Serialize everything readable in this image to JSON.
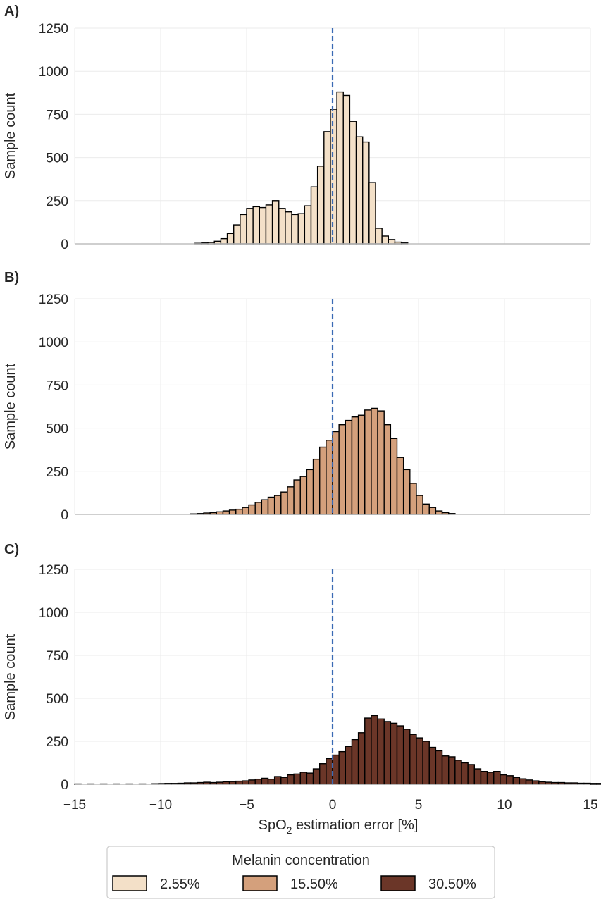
{
  "chart_data": {
    "type": "bar",
    "subtype": "histogram",
    "x_range": [
      -15,
      15
    ],
    "x_ticks": [
      -15,
      -10,
      -5,
      0,
      5,
      10,
      15
    ],
    "x_tick_labels": [
      "−15",
      "−10",
      "−5",
      "0",
      "5",
      "10",
      "15"
    ],
    "xlabel_main": "SpO",
    "xlabel_sub": "2",
    "xlabel_rest": " estimation error [%]",
    "ylabel": "Sample count",
    "y_range": [
      0,
      1250
    ],
    "y_ticks": [
      0,
      250,
      500,
      750,
      1000,
      1250
    ],
    "grid": true,
    "reference_line": {
      "x": 0,
      "color": "#3a6ab4",
      "style": "dashed"
    },
    "bin_width": 0.375,
    "legend": {
      "title": "Melanin concentration",
      "placement": "bottom-center",
      "items": [
        {
          "label": "2.55%",
          "color": "#f3e0c8"
        },
        {
          "label": "15.50%",
          "color": "#d4a07c"
        },
        {
          "label": "30.50%",
          "color": "#6b3628"
        }
      ]
    },
    "panels": [
      {
        "label": "A)",
        "series_name": "2.55%",
        "color": "#f3e0c8",
        "bin_start": -8.0,
        "counts": [
          3,
          5,
          8,
          15,
          30,
          60,
          110,
          170,
          205,
          215,
          210,
          225,
          250,
          205,
          185,
          170,
          175,
          220,
          330,
          450,
          650,
          780,
          880,
          860,
          710,
          620,
          590,
          355,
          90,
          45,
          25,
          10,
          5
        ]
      },
      {
        "label": "B)",
        "series_name": "15.50%",
        "color": "#d4a07c",
        "bin_start": -8.25,
        "counts": [
          3,
          5,
          8,
          10,
          15,
          20,
          25,
          30,
          40,
          55,
          70,
          85,
          100,
          110,
          130,
          160,
          200,
          220,
          260,
          320,
          390,
          430,
          480,
          520,
          545,
          565,
          575,
          605,
          615,
          600,
          520,
          440,
          330,
          260,
          180,
          110,
          60,
          40,
          20,
          10,
          5
        ]
      },
      {
        "label": "C)",
        "series_name": "30.50%",
        "color": "#6b3628",
        "bin_start": -15.0,
        "counts": [
          2,
          0,
          2,
          0,
          2,
          0,
          2,
          0,
          2,
          0,
          2,
          0,
          3,
          4,
          5,
          5,
          6,
          8,
          8,
          10,
          12,
          10,
          12,
          15,
          16,
          18,
          20,
          25,
          30,
          35,
          30,
          45,
          40,
          55,
          60,
          70,
          65,
          90,
          120,
          150,
          170,
          190,
          220,
          260,
          300,
          385,
          400,
          380,
          365,
          355,
          340,
          320,
          290,
          270,
          250,
          215,
          195,
          165,
          160,
          140,
          125,
          115,
          90,
          75,
          70,
          75,
          55,
          50,
          40,
          32,
          25,
          20,
          15,
          12,
          10,
          10,
          8,
          8,
          6,
          6,
          5,
          5
        ]
      }
    ]
  }
}
